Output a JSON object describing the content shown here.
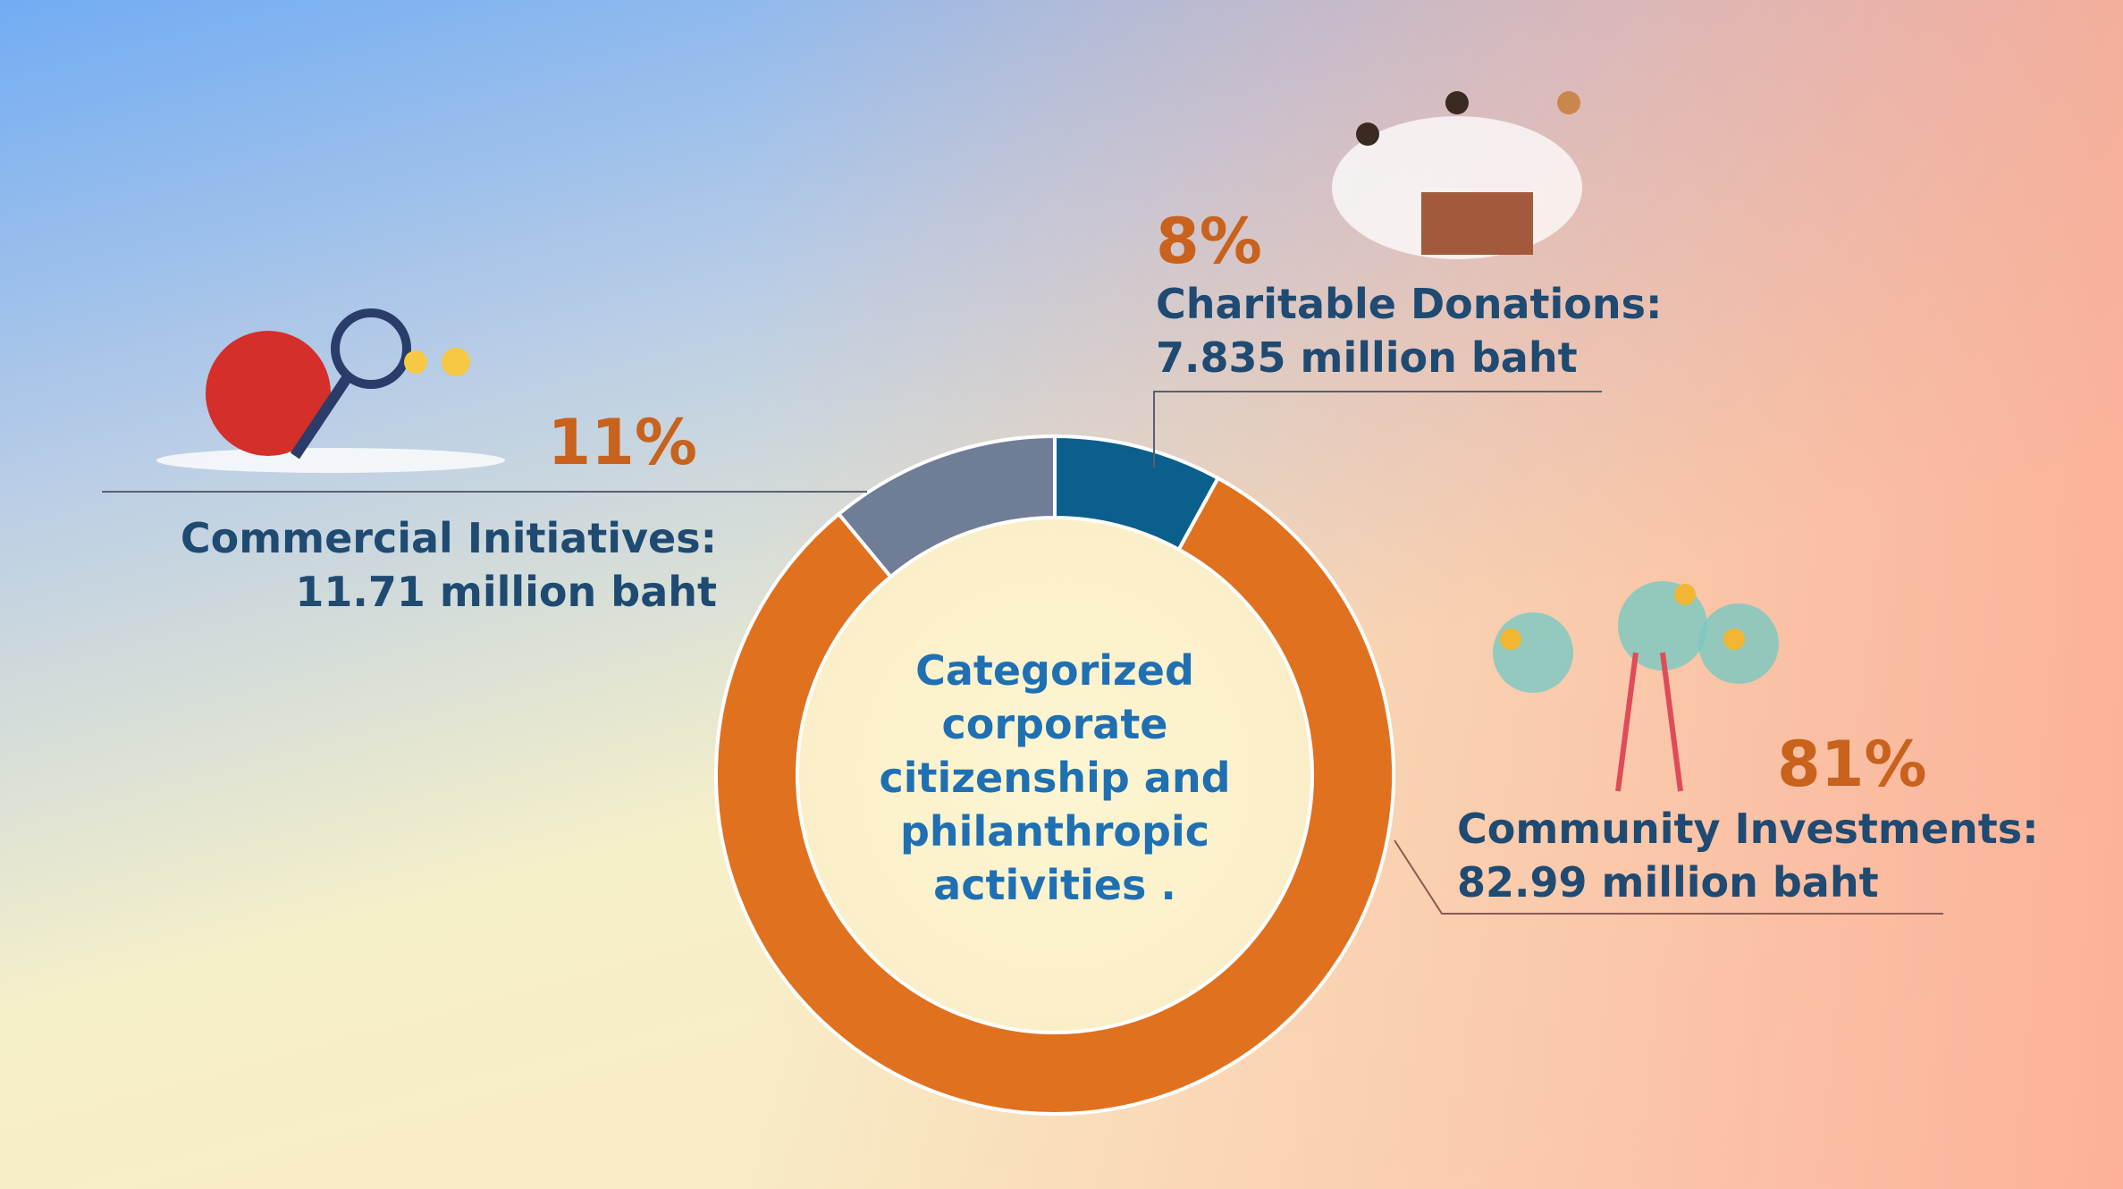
{
  "chart_data": {
    "type": "pie",
    "title": "Categorized corporate citizenship and philanthropic activities .",
    "categories": [
      "Charitable Donations:",
      "Community Investments:",
      "Commercial Initiatives:"
    ],
    "amounts": [
      "7.835 million baht",
      "82.99 million baht",
      "11.71 million baht"
    ],
    "values": [
      8,
      81,
      11
    ],
    "value_labels": [
      "8%",
      "81%",
      "11%"
    ],
    "colors": [
      "#0b5f8c",
      "#e0711f",
      "#6f7d97"
    ],
    "donut": true
  }
}
